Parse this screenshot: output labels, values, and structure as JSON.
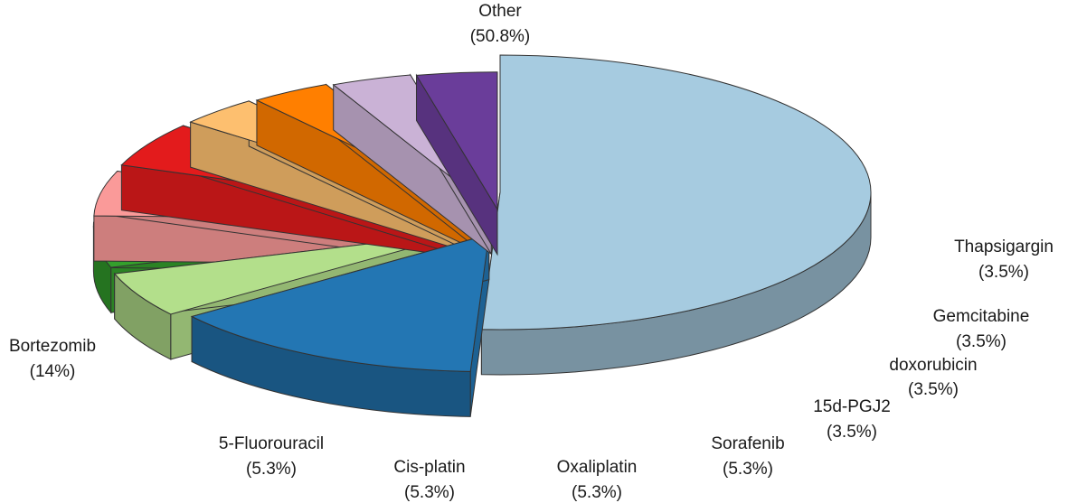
{
  "chart_data": {
    "type": "pie",
    "style": "3d-exploded",
    "title": "",
    "slices": [
      {
        "label": "Other",
        "pct_text": "(50.8%)",
        "value": 50.8,
        "color": "#a6cbe0"
      },
      {
        "label": "Bortezomib",
        "pct_text": "(14%)",
        "value": 14,
        "color": "#2376b3"
      },
      {
        "label": "5-Fluorouracil",
        "pct_text": "(5.3%)",
        "value": 5.3,
        "color": "#b3df8b"
      },
      {
        "label": "Cis-platin",
        "pct_text": "(5.3%)",
        "value": 5.3,
        "color": "#34a02c"
      },
      {
        "label": "Oxaliplatin",
        "pct_text": "(5.3%)",
        "value": 5.3,
        "color": "#fa9a99"
      },
      {
        "label": "Sorafenib",
        "pct_text": "(5.3%)",
        "value": 5.3,
        "color": "#e31b1c"
      },
      {
        "label": "15d-PGJ2",
        "pct_text": "(3.5%)",
        "value": 3.5,
        "color": "#fdbf6f"
      },
      {
        "label": "doxorubicin",
        "pct_text": "(3.5%)",
        "value": 3.5,
        "color": "#ff7f00"
      },
      {
        "label": "Gemcitabine",
        "pct_text": "(3.5%)",
        "value": 3.5,
        "color": "#cab2d6"
      },
      {
        "label": "Thapsigargin",
        "pct_text": "(3.5%)",
        "value": 3.5,
        "color": "#6a3d9a"
      }
    ]
  }
}
